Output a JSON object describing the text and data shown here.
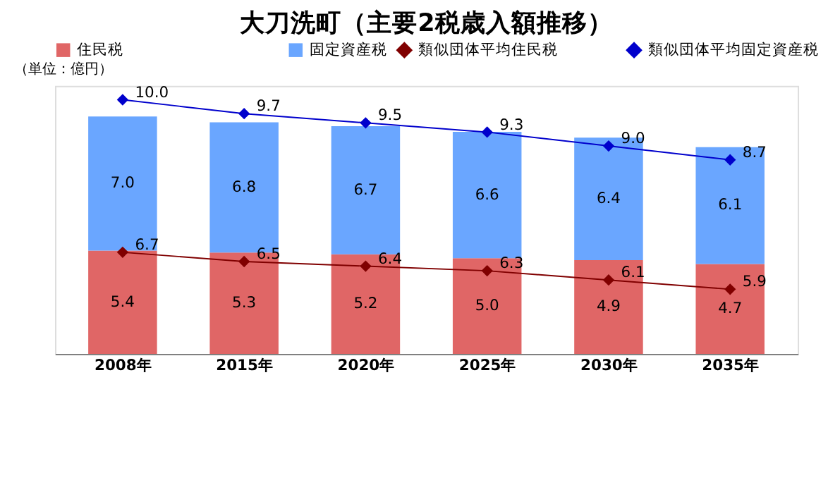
{
  "chart_data": {
    "type": "bar",
    "title": "大刀洗町（主要2税歳入額推移）",
    "annotations": [
      "（単位：億円）"
    ],
    "categories": [
      "2008年",
      "2015年",
      "2020年",
      "2025年",
      "2030年",
      "2035年"
    ],
    "stacked": true,
    "tick_labels": "x",
    "legend": "top",
    "grid": false,
    "ylim": [
      0,
      14
    ],
    "y2lim": [
      4.5,
      10.3
    ],
    "series": [
      {
        "name": "住民税",
        "color": "#e06666",
        "values": [
          5.4,
          5.3,
          5.2,
          5.0,
          4.9,
          4.7
        ],
        "value_labels": [
          "5.4",
          "5.3",
          "5.2",
          "5.0",
          "4.9",
          "4.7"
        ]
      },
      {
        "name": "固定資産税",
        "color": "#6aa6ff",
        "values": [
          7.0,
          6.8,
          6.7,
          6.6,
          6.4,
          6.1
        ],
        "value_labels": [
          "7.0",
          "6.8",
          "6.7",
          "6.6",
          "6.4",
          "6.1"
        ]
      },
      {
        "name": "類似団体平均住民税",
        "type": "line",
        "axis": "y2",
        "color": "#800000",
        "marker": "diamond",
        "values": [
          6.7,
          6.5,
          6.4,
          6.3,
          6.1,
          5.9
        ],
        "value_labels": [
          "6.7",
          "6.5",
          "6.4",
          "6.3",
          "6.1",
          "5.9"
        ]
      },
      {
        "name": "類似団体平均固定資産税",
        "type": "line",
        "axis": "y2",
        "color": "#0000cc",
        "marker": "diamond",
        "values": [
          10.0,
          9.7,
          9.5,
          9.3,
          9.0,
          8.7
        ],
        "value_labels": [
          "10.0",
          "9.7",
          "9.5",
          "9.3",
          "9.0",
          "8.7"
        ]
      }
    ]
  }
}
